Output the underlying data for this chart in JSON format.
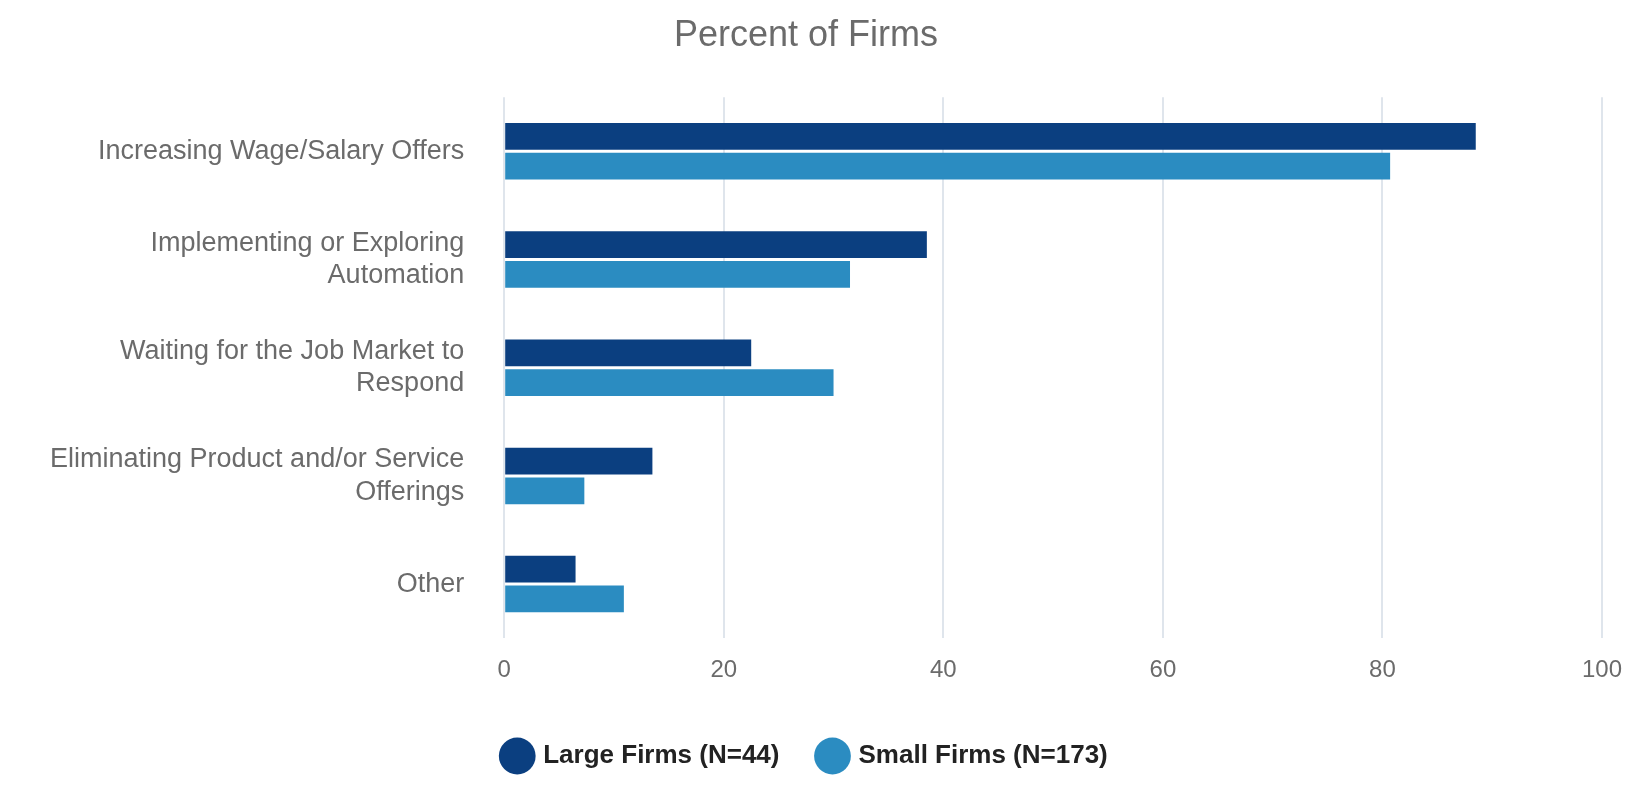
{
  "chart_data": {
    "type": "bar",
    "orientation": "horizontal",
    "title": "Percent of Firms",
    "categories": [
      "Increasing Wage/Salary Offers",
      "Implementing or Exploring Automation",
      "Waiting for the Job Market to Respond",
      "Eliminating Product and/or Service Offerings",
      "Other"
    ],
    "series": [
      {
        "name": "Large Firms (N=44)",
        "color": "#0b3f80",
        "values": [
          88.5,
          38.5,
          22.5,
          13.5,
          6.5
        ]
      },
      {
        "name": "Small Firms (N=173)",
        "color": "#2b8cc1",
        "values": [
          80.7,
          31.5,
          30.0,
          7.3,
          10.9
        ]
      }
    ],
    "xlim": [
      0,
      100
    ],
    "xticks": [
      0,
      20,
      40,
      60,
      80,
      100
    ],
    "grid": "x",
    "legend": "bottom"
  }
}
